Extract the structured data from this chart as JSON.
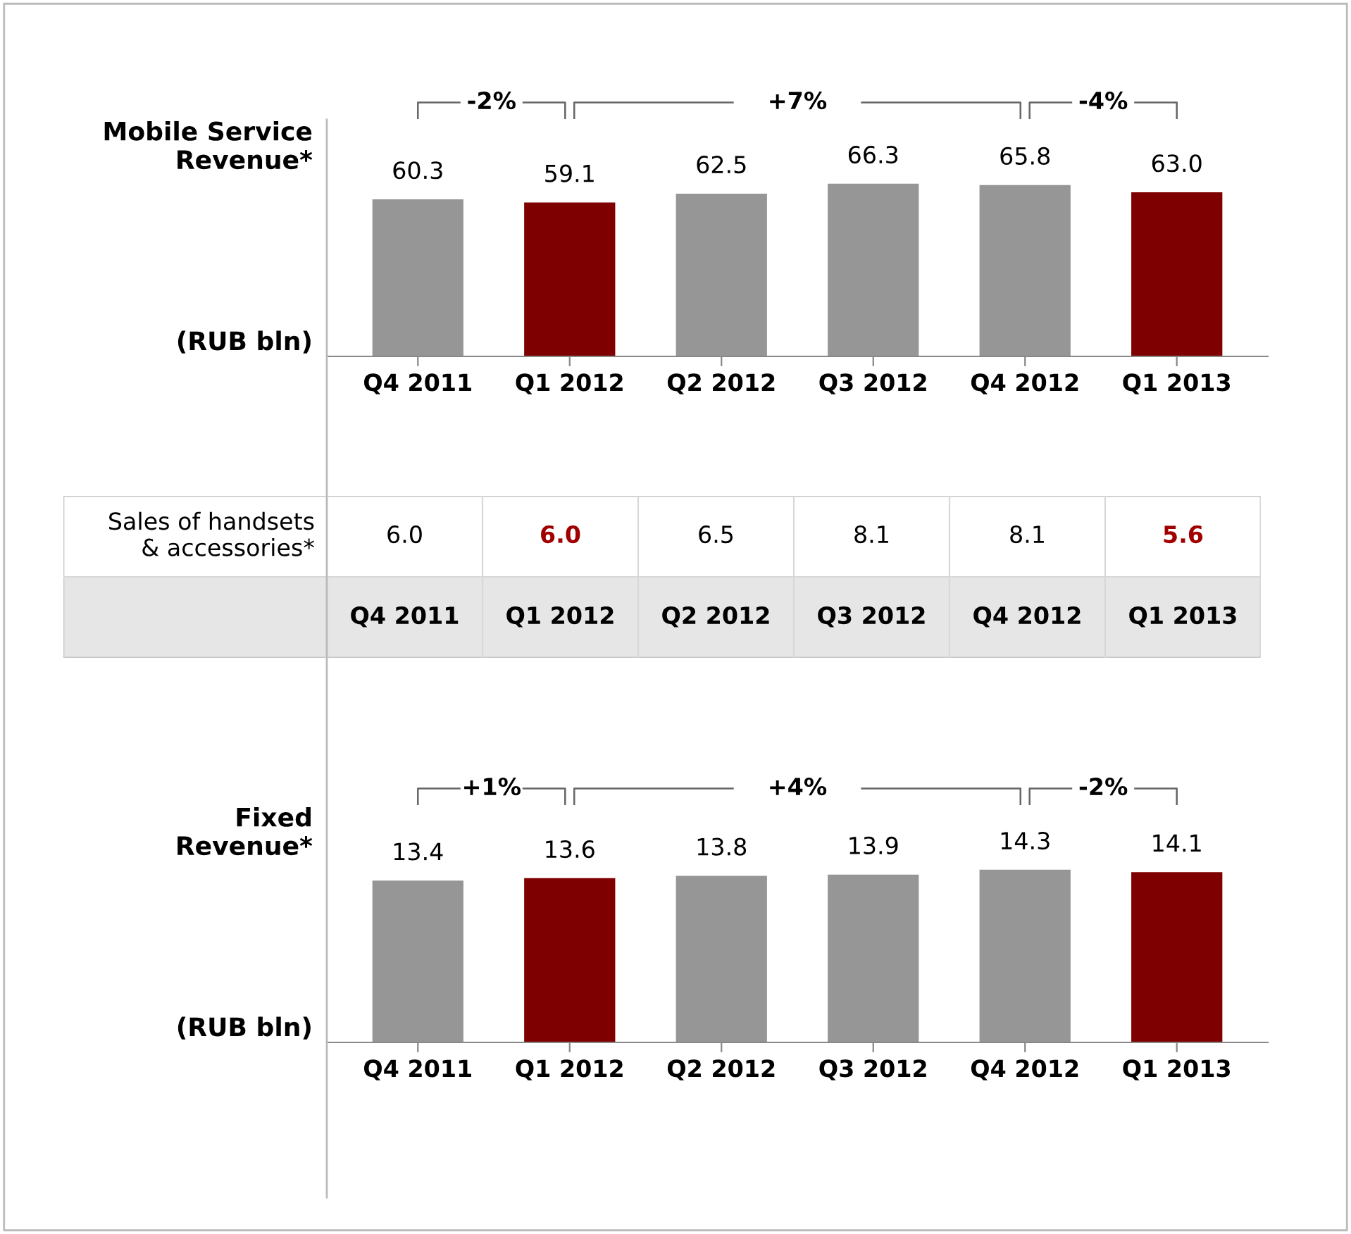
{
  "chart_data": [
    {
      "type": "bar",
      "title": "Mobile Service\nRevenue*",
      "ylabel": "(RUB bln)",
      "categories": [
        "Q4 2011",
        "Q1 2012",
        "Q2 2012",
        "Q3 2012",
        "Q4 2012",
        "Q1 2013"
      ],
      "values": [
        60.3,
        59.1,
        62.5,
        66.3,
        65.8,
        63.0
      ],
      "value_labels": [
        "60.3",
        "59.1",
        "62.5",
        "66.3",
        "65.8",
        "63.0"
      ],
      "colors": [
        "#969696",
        "#7f0000",
        "#969696",
        "#969696",
        "#969696",
        "#7f0000"
      ],
      "annotations": [
        "-2%",
        "+7%",
        "-4%"
      ]
    },
    {
      "type": "other",
      "title": "Sales of handsets\n& accessories*",
      "categories": [
        "Q4 2011",
        "Q1 2012",
        "Q2 2012",
        "Q3 2012",
        "Q4 2012",
        "Q1 2013"
      ],
      "values": [
        6.0,
        6.0,
        6.5,
        8.1,
        8.1,
        5.6
      ],
      "value_labels": [
        "6.0",
        "6.0",
        "6.5",
        "8.1",
        "8.1",
        "5.6"
      ],
      "colors": [
        "#000000",
        "#a00000",
        "#000000",
        "#000000",
        "#000000",
        "#a00000"
      ]
    },
    {
      "type": "bar",
      "title": "Fixed\nRevenue*",
      "ylabel": "(RUB bln)",
      "categories": [
        "Q4 2011",
        "Q1 2012",
        "Q2 2012",
        "Q3 2012",
        "Q4 2012",
        "Q1 2013"
      ],
      "values": [
        13.4,
        13.6,
        13.8,
        13.9,
        14.3,
        14.1
      ],
      "value_labels": [
        "13.4",
        "13.6",
        "13.8",
        "13.9",
        "14.3",
        "14.1"
      ],
      "colors": [
        "#969696",
        "#7f0000",
        "#969696",
        "#969696",
        "#969696",
        "#7f0000"
      ],
      "annotations": [
        "+1%",
        "+4%",
        "-2%"
      ]
    }
  ]
}
